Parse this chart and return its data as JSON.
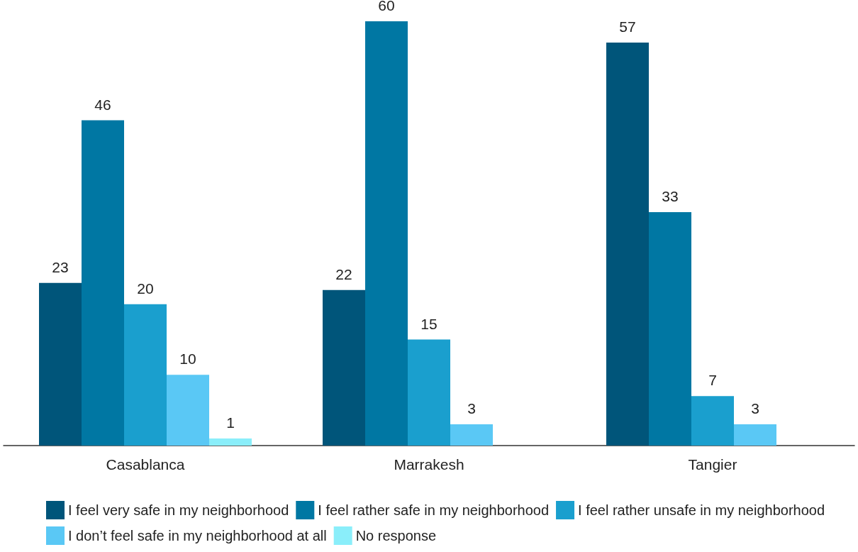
{
  "chart_data": {
    "type": "bar",
    "categories": [
      "Casablanca",
      "Marrakesh",
      "Tangier"
    ],
    "series": [
      {
        "name": "I feel very safe in my neighborhood",
        "color": "#00557a",
        "values": [
          23,
          22,
          57
        ]
      },
      {
        "name": "I feel rather safe in my neighborhood",
        "color": "#0077a3",
        "values": [
          46,
          60,
          33
        ]
      },
      {
        "name": "I feel rather unsafe in my neighborhood",
        "color": "#1a9fce",
        "values": [
          20,
          15,
          7
        ]
      },
      {
        "name": "I don’t feel safe in my neighborhood at all",
        "color": "#5ac8f5",
        "values": [
          10,
          3,
          3
        ]
      },
      {
        "name": "No response",
        "color": "#8aeefa",
        "values": [
          1,
          null,
          null
        ]
      }
    ],
    "data_labels": true,
    "legend": "bottom",
    "grid": false
  }
}
